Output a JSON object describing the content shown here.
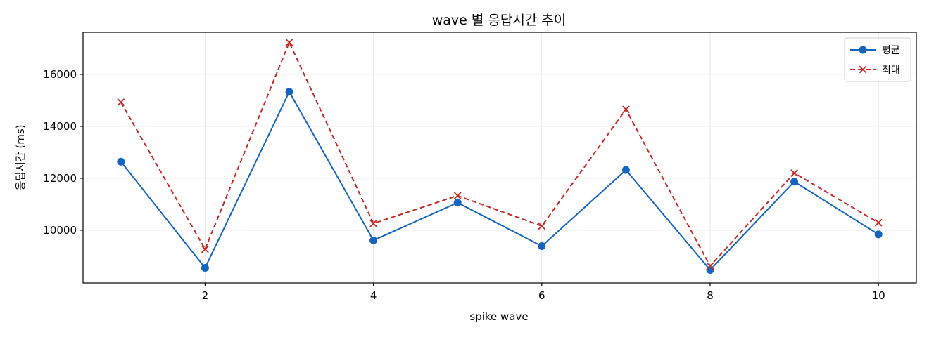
{
  "chart_data": {
    "type": "line",
    "title": "wave 별 응답시간 추이",
    "xlabel": "spike wave",
    "ylabel": "응답시간 (ms)",
    "x": [
      1,
      2,
      3,
      4,
      5,
      6,
      7,
      8,
      9,
      10
    ],
    "xlim": [
      0.55,
      10.45
    ],
    "ylim": [
      7970,
      17620
    ],
    "xticks": [
      2,
      4,
      6,
      8,
      10
    ],
    "yticks": [
      10000,
      12000,
      14000,
      16000
    ],
    "grid": true,
    "legend_position": "top-right",
    "series": [
      {
        "name": "평균",
        "color": "#1565c0",
        "line_style": "solid",
        "marker": "circle",
        "values": [
          12640,
          8550,
          15330,
          9610,
          11060,
          9390,
          12320,
          8470,
          11870,
          9840
        ]
      },
      {
        "name": "최대",
        "color": "#c62828",
        "line_style": "dashed",
        "marker": "x",
        "values": [
          14930,
          9270,
          17230,
          10260,
          11330,
          10160,
          14650,
          8620,
          12200,
          10290
        ]
      }
    ]
  }
}
